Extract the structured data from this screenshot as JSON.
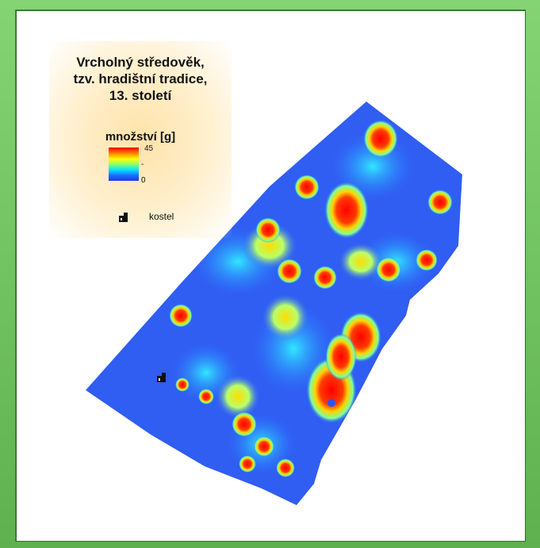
{
  "legend": {
    "title_lines": [
      "Vrcholný středověk,",
      "tzv. hradištní tradice,",
      "13. století"
    ],
    "quantity_label": "množství [g]",
    "scale_max": "45",
    "scale_mid": "-",
    "scale_min": "0",
    "church_label": "kostel",
    "church_icon": "church-icon"
  },
  "colors": {
    "low": "#1a3ae6",
    "mid": "#00e0ff",
    "high": "#ff0000",
    "frame": "#6fc25f"
  }
}
